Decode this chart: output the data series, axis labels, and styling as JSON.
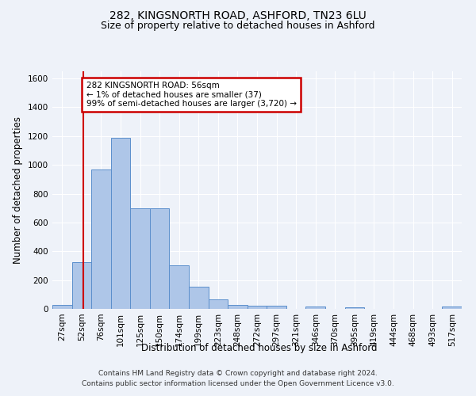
{
  "title_line1": "282, KINGSNORTH ROAD, ASHFORD, TN23 6LU",
  "title_line2": "Size of property relative to detached houses in Ashford",
  "xlabel": "Distribution of detached houses by size in Ashford",
  "ylabel": "Number of detached properties",
  "categories": [
    "27sqm",
    "52sqm",
    "76sqm",
    "101sqm",
    "125sqm",
    "150sqm",
    "174sqm",
    "199sqm",
    "223sqm",
    "248sqm",
    "272sqm",
    "297sqm",
    "321sqm",
    "346sqm",
    "370sqm",
    "395sqm",
    "419sqm",
    "444sqm",
    "468sqm",
    "493sqm",
    "517sqm"
  ],
  "values": [
    30,
    325,
    970,
    1190,
    700,
    700,
    300,
    155,
    65,
    25,
    20,
    20,
    0,
    15,
    0,
    10,
    0,
    0,
    0,
    0,
    15
  ],
  "bar_color": "#aec6e8",
  "bar_edge_color": "#5b8fcc",
  "vline_x": 1.08,
  "annotation_text": "282 KINGSNORTH ROAD: 56sqm\n← 1% of detached houses are smaller (37)\n99% of semi-detached houses are larger (3,720) →",
  "annotation_box_facecolor": "#ffffff",
  "annotation_box_edgecolor": "#cc0000",
  "vline_color": "#cc0000",
  "ylim": [
    0,
    1650
  ],
  "yticks": [
    0,
    200,
    400,
    600,
    800,
    1000,
    1200,
    1400,
    1600
  ],
  "footer_line1": "Contains HM Land Registry data © Crown copyright and database right 2024.",
  "footer_line2": "Contains public sector information licensed under the Open Government Licence v3.0.",
  "bg_color": "#eef2f9",
  "plot_bg_color": "#eef2f9",
  "grid_color": "#ffffff",
  "title_fontsize": 10,
  "subtitle_fontsize": 9,
  "axis_label_fontsize": 8.5,
  "tick_fontsize": 7.5,
  "annotation_fontsize": 7.5,
  "footer_fontsize": 6.5
}
